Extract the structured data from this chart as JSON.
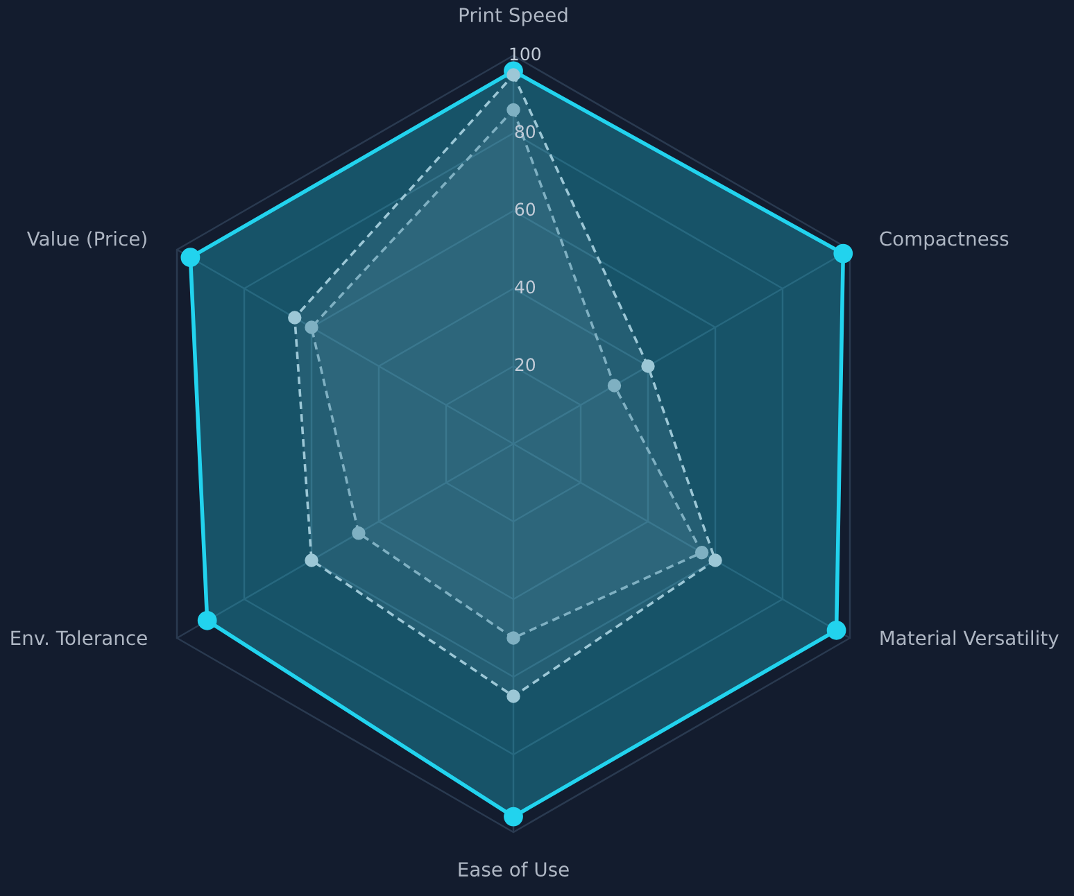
{
  "chart_data": {
    "type": "radar",
    "categories": [
      "Print Speed",
      "Compactness",
      "Material Versatility",
      "Ease of Use",
      "Env. Tolerance",
      "Value (Price)"
    ],
    "ylim": [
      0,
      100
    ],
    "yticks": [
      20,
      40,
      60,
      80,
      100
    ],
    "grid": true,
    "marker": "circle",
    "series": [
      {
        "color": "#22d3ee",
        "line_style": "solid",
        "values": [
          96,
          98,
          96,
          96,
          91,
          96
        ]
      },
      {
        "color": "#9cc7d6",
        "line_style": "dashed",
        "values": [
          95,
          40,
          60,
          65,
          60,
          65
        ]
      },
      {
        "color": "#7fb0c2",
        "line_style": "dashed",
        "values": [
          86,
          30,
          56,
          50,
          46,
          60
        ]
      }
    ]
  }
}
